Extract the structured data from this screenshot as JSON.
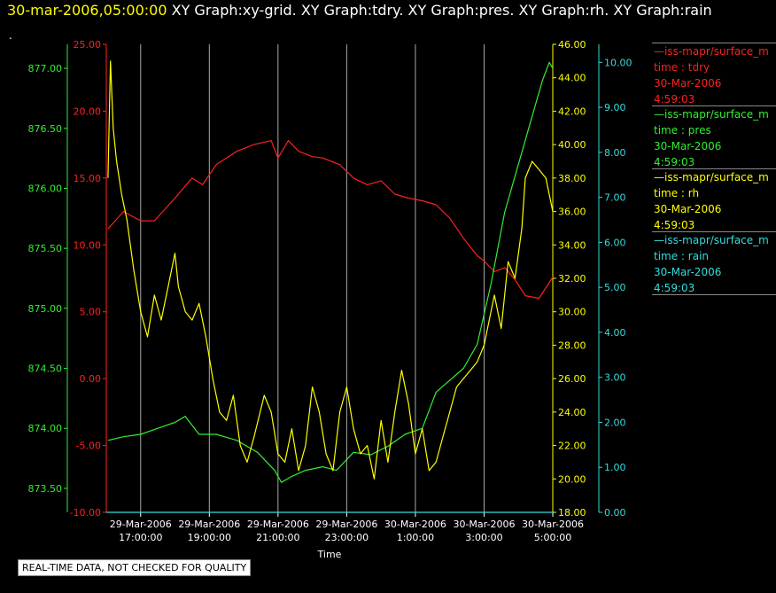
{
  "header": {
    "timestamp": "30-mar-2006,05:00:00",
    "graphs": "XY Graph:xy-grid.  XY Graph:tdry.  XY Graph:pres.  XY Graph:rh.  XY Graph:rain",
    "dot": "."
  },
  "legend": [
    {
      "source": "—iss-mapr/surface_m",
      "var": "time : tdry",
      "date": "30-Mar-2006",
      "time": "4:59:03",
      "color": "#ff2020"
    },
    {
      "source": "—iss-mapr/surface_m",
      "var": "time : pres",
      "date": "30-Mar-2006",
      "time": "4:59:03",
      "color": "#33ee33"
    },
    {
      "source": "—iss-mapr/surface_m",
      "var": "time : rh",
      "date": "30-Mar-2006",
      "time": "4:59:03",
      "color": "#ffff00"
    },
    {
      "source": "—iss-mapr/surface_m",
      "var": "time : rain",
      "date": "30-Mar-2006",
      "time": "4:59:03",
      "color": "#33dddd"
    }
  ],
  "disclaimer": "REAL-TIME DATA, NOT CHECKED FOR QUALITY",
  "chart_data": {
    "type": "line",
    "xlabel": "Time",
    "x_ticks": [
      {
        "date": "29-Mar-2006",
        "time": "17:00:00"
      },
      {
        "date": "29-Mar-2006",
        "time": "19:00:00"
      },
      {
        "date": "29-Mar-2006",
        "time": "21:00:00"
      },
      {
        "date": "29-Mar-2006",
        "time": "23:00:00"
      },
      {
        "date": "30-Mar-2006",
        "time": "1:00:00"
      },
      {
        "date": "30-Mar-2006",
        "time": "3:00:00"
      },
      {
        "date": "30-Mar-2006",
        "time": "5:00:00"
      }
    ],
    "xlim_hours": [
      16.0,
      29.0
    ],
    "grid": "vertical",
    "axes": {
      "pres": {
        "ticks": [
          "873.50",
          "874.00",
          "874.50",
          "875.00",
          "875.50",
          "876.00",
          "876.50",
          "877.00"
        ],
        "ylim": [
          873.3,
          877.2
        ],
        "color": "#33ee33"
      },
      "tdry": {
        "ticks": [
          "-10.00",
          "-5.00",
          "0.00",
          "5.00",
          "10.00",
          "15.00",
          "20.00",
          "25.00"
        ],
        "ylim": [
          -10,
          25
        ],
        "color": "#ff2020"
      },
      "rh": {
        "ticks": [
          "18.00",
          "20.00",
          "22.00",
          "24.00",
          "26.00",
          "28.00",
          "30.00",
          "32.00",
          "34.00",
          "36.00",
          "38.00",
          "40.00",
          "42.00",
          "44.00",
          "46.00"
        ],
        "ylim": [
          18,
          46
        ],
        "color": "#ffff00"
      },
      "rain": {
        "ticks": [
          "0.00",
          "1.00",
          "2.00",
          "3.00",
          "4.00",
          "5.00",
          "6.00",
          "7.00",
          "8.00",
          "9.00",
          "10.00"
        ],
        "ylim": [
          0,
          10.4
        ],
        "color": "#33dddd"
      }
    },
    "series": [
      {
        "name": "tdry",
        "axis": "tdry",
        "color": "#ff2020",
        "x": [
          16.05,
          16.5,
          17.0,
          17.4,
          18.0,
          18.5,
          18.8,
          19.2,
          19.8,
          20.3,
          20.8,
          21.0,
          21.3,
          21.6,
          22.0,
          22.3,
          22.8,
          23.2,
          23.6,
          24.0,
          24.4,
          24.8,
          25.2,
          25.6,
          26.0,
          26.4,
          26.8,
          27.0,
          27.3,
          27.6,
          27.9,
          28.2,
          28.6,
          29.0
        ],
        "y": [
          11.2,
          12.5,
          11.8,
          11.8,
          13.5,
          15.0,
          14.5,
          16.0,
          17.0,
          17.5,
          17.8,
          16.5,
          17.8,
          17.0,
          16.6,
          16.5,
          16.0,
          15.0,
          14.5,
          14.8,
          13.8,
          13.5,
          13.3,
          13.0,
          12.0,
          10.5,
          9.2,
          8.8,
          8.0,
          8.3,
          7.4,
          6.2,
          6.0,
          7.6
        ]
      },
      {
        "name": "pres",
        "axis": "pres",
        "color": "#33ee33",
        "x": [
          16.05,
          16.5,
          17.0,
          17.5,
          18.0,
          18.3,
          18.7,
          19.2,
          19.8,
          20.4,
          20.9,
          21.1,
          21.4,
          21.8,
          22.3,
          22.7,
          23.2,
          23.7,
          24.2,
          24.7,
          25.2,
          25.6,
          26.0,
          26.4,
          26.8,
          27.2,
          27.6,
          28.0,
          28.4,
          28.7,
          28.9,
          29.0
        ],
        "y": [
          873.9,
          873.93,
          873.95,
          874.0,
          874.05,
          874.1,
          873.95,
          873.95,
          873.9,
          873.8,
          873.65,
          873.55,
          873.6,
          873.65,
          873.68,
          873.65,
          873.8,
          873.78,
          873.85,
          873.95,
          874.0,
          874.3,
          874.4,
          874.5,
          874.7,
          875.2,
          875.8,
          876.2,
          876.6,
          876.9,
          877.05,
          877.0
        ]
      },
      {
        "name": "rh",
        "axis": "rh",
        "color": "#ffff00",
        "x": [
          16.05,
          16.12,
          16.2,
          16.3,
          16.45,
          16.6,
          16.8,
          17.0,
          17.2,
          17.4,
          17.6,
          17.8,
          18.0,
          18.1,
          18.3,
          18.5,
          18.7,
          18.9,
          19.1,
          19.3,
          19.5,
          19.7,
          19.9,
          20.1,
          20.3,
          20.6,
          20.8,
          21.0,
          21.2,
          21.4,
          21.6,
          21.8,
          22.0,
          22.2,
          22.4,
          22.6,
          22.8,
          23.0,
          23.2,
          23.4,
          23.6,
          23.8,
          24.0,
          24.2,
          24.4,
          24.6,
          24.8,
          25.0,
          25.2,
          25.4,
          25.6,
          25.8,
          26.0,
          26.2,
          26.4,
          26.6,
          26.8,
          27.0,
          27.2,
          27.3,
          27.5,
          27.7,
          27.9,
          28.1,
          28.2,
          28.4,
          28.6,
          28.8,
          29.0
        ],
        "y": [
          38.0,
          45.0,
          41.0,
          39.0,
          37.0,
          35.5,
          32.5,
          30.0,
          28.5,
          31.0,
          29.5,
          31.5,
          33.5,
          31.5,
          30.0,
          29.5,
          30.5,
          28.5,
          26.0,
          24.0,
          23.5,
          25.0,
          22.0,
          21.0,
          22.5,
          25.0,
          24.0,
          21.5,
          21.0,
          23.0,
          20.5,
          22.0,
          25.5,
          24.0,
          21.5,
          20.5,
          24.0,
          25.5,
          23.0,
          21.5,
          22.0,
          20.0,
          23.5,
          21.0,
          24.0,
          26.5,
          24.5,
          21.5,
          23.0,
          20.5,
          21.0,
          22.5,
          24.0,
          25.5,
          26.0,
          26.5,
          27.0,
          28.0,
          30.0,
          31.0,
          29.0,
          33.0,
          32.0,
          35.0,
          38.0,
          39.0,
          38.5,
          38.0,
          36.0
        ]
      },
      {
        "name": "rain",
        "axis": "rain",
        "color": "#33dddd",
        "x": [
          16.0,
          29.0
        ],
        "y": [
          0.0,
          0.0
        ]
      }
    ]
  }
}
